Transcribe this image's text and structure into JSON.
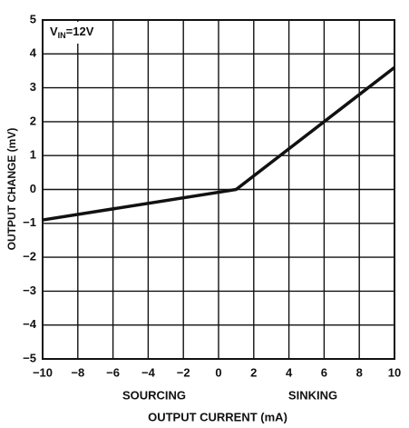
{
  "chart_data": {
    "type": "line",
    "xlabel": "OUTPUT CURRENT (mA)",
    "ylabel": "OUTPUT CHANGE (mV)",
    "annotation": [
      "V",
      "IN",
      "=12V"
    ],
    "x_side_labels": [
      "SOURCING",
      "SINKING"
    ],
    "x": [
      -10,
      1,
      10
    ],
    "series": [
      {
        "color": "#111111",
        "values": [
          -0.9,
          0,
          3.6
        ]
      }
    ],
    "xlim": [
      -10,
      10
    ],
    "xticks": [
      {
        "value": -10,
        "label": "−10"
      },
      {
        "value": -8,
        "label": "−8"
      },
      {
        "value": -6,
        "label": "−6"
      },
      {
        "value": -4,
        "label": "−4"
      },
      {
        "value": -2,
        "label": "−2"
      },
      0,
      2,
      4,
      6,
      8,
      10
    ],
    "ylim": [
      -5,
      5
    ],
    "yticks": [
      5,
      4,
      3,
      2,
      1,
      0,
      {
        "value": -1,
        "label": "−1"
      },
      {
        "value": -2,
        "label": "−2"
      },
      {
        "value": -3,
        "label": "−3"
      },
      {
        "value": -4,
        "label": "−4"
      },
      {
        "value": -5,
        "label": "−5"
      }
    ],
    "grid": true
  }
}
